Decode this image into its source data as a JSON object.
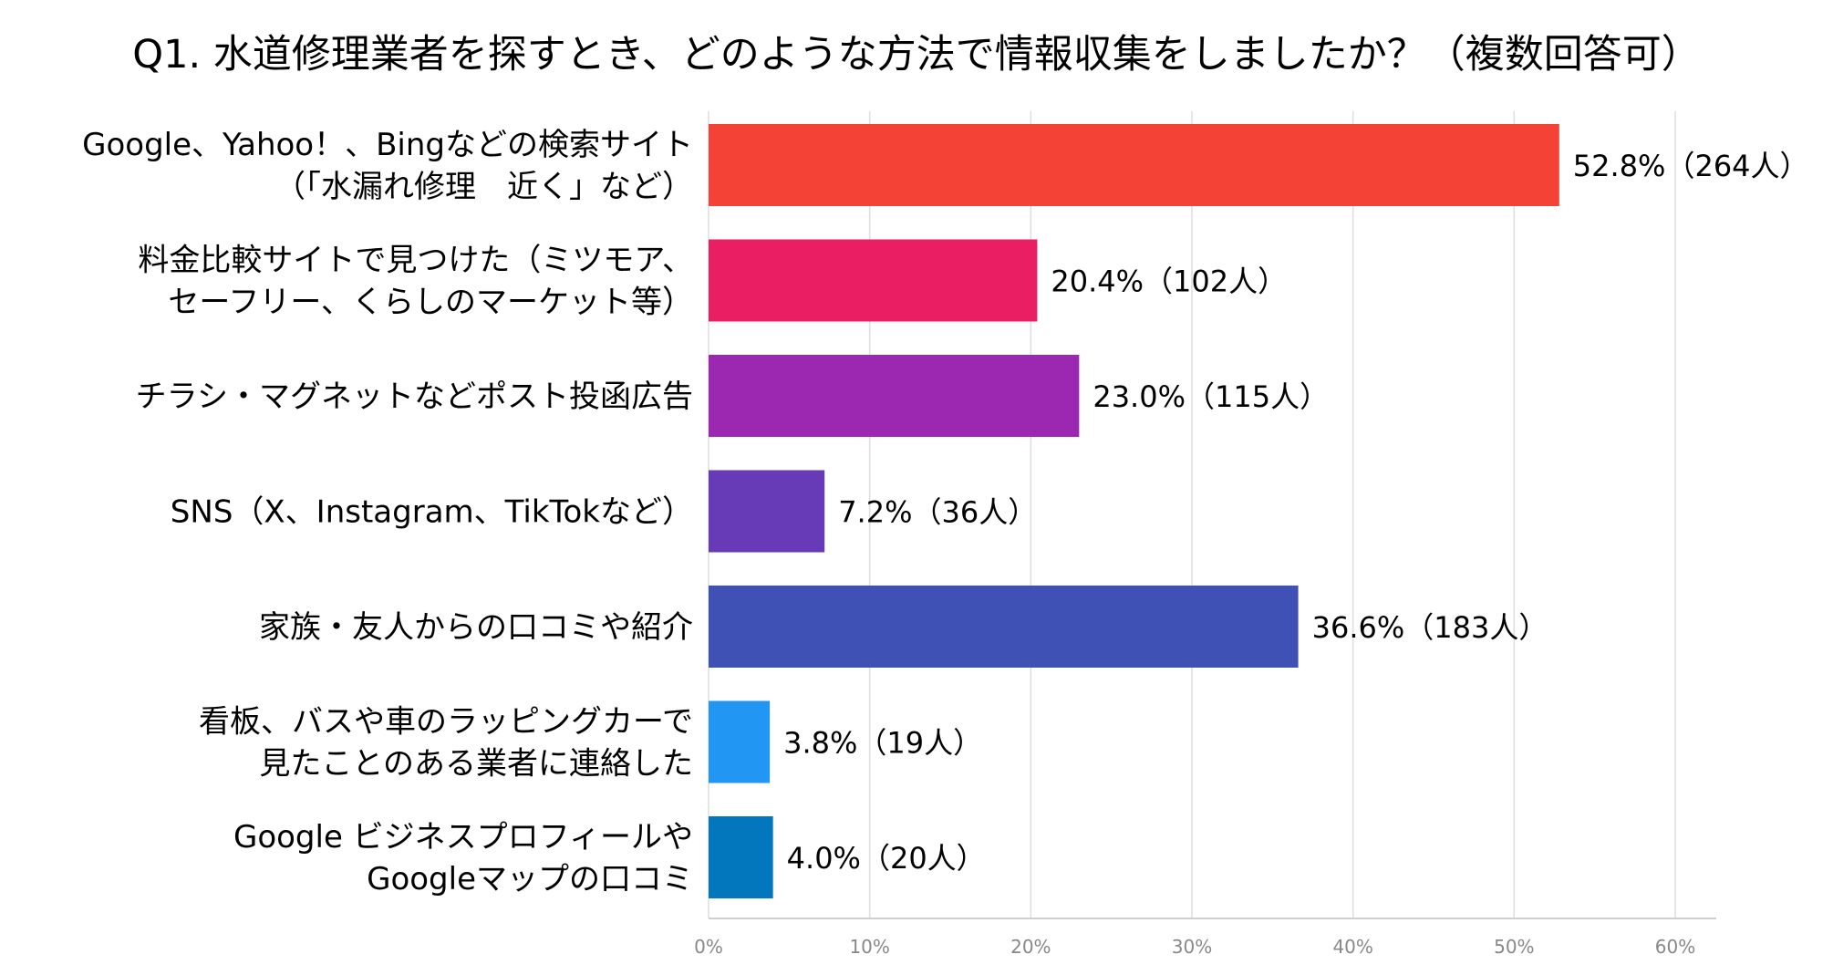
{
  "chart_data": {
    "type": "bar",
    "orientation": "horizontal",
    "title": "Q1. 水道修理業者を探すとき、どのような方法で情報収集をしましたか？（複数回答可）",
    "xlabel": "",
    "ylabel": "",
    "xlim": [
      0,
      60
    ],
    "x_ticks": [
      0,
      10,
      20,
      30,
      40,
      50,
      60
    ],
    "x_tick_labels": [
      "0%",
      "10%",
      "20%",
      "30%",
      "40%",
      "50%",
      "60%"
    ],
    "grid": true,
    "legend": "none",
    "categories": [
      {
        "lines": [
          "Google、Yahoo！、Bingなどの検索サイト",
          "（「水漏れ修理　近く」など）"
        ],
        "value": 52.8,
        "label": "52.8%（264人）",
        "color": "#f44336"
      },
      {
        "lines": [
          "料金比較サイトで見つけた（ミツモア、",
          "セーフリー、くらしのマーケット等）"
        ],
        "value": 20.4,
        "label": "20.4%（102人）",
        "color": "#e91e63"
      },
      {
        "lines": [
          "チラシ・マグネットなどポスト投函広告"
        ],
        "value": 23.0,
        "label": "23.0%（115人）",
        "color": "#9c27b0"
      },
      {
        "lines": [
          "SNS（X、Instagram、TikTokなど）"
        ],
        "value": 7.2,
        "label": "7.2%（36人）",
        "color": "#673ab7"
      },
      {
        "lines": [
          "家族・友人からの口コミや紹介"
        ],
        "value": 36.6,
        "label": "36.6%（183人）",
        "color": "#3f51b5"
      },
      {
        "lines": [
          "看板、バスや車のラッピングカーで",
          "見たことのある業者に連絡した"
        ],
        "value": 3.8,
        "label": "3.8%（19人）",
        "color": "#2196f3"
      },
      {
        "lines": [
          "Google ビジネスプロフィールや",
          "Googleマップの口コミ"
        ],
        "value": 4.0,
        "label": "4.0%（20人）",
        "color": "#0277bd"
      }
    ]
  }
}
